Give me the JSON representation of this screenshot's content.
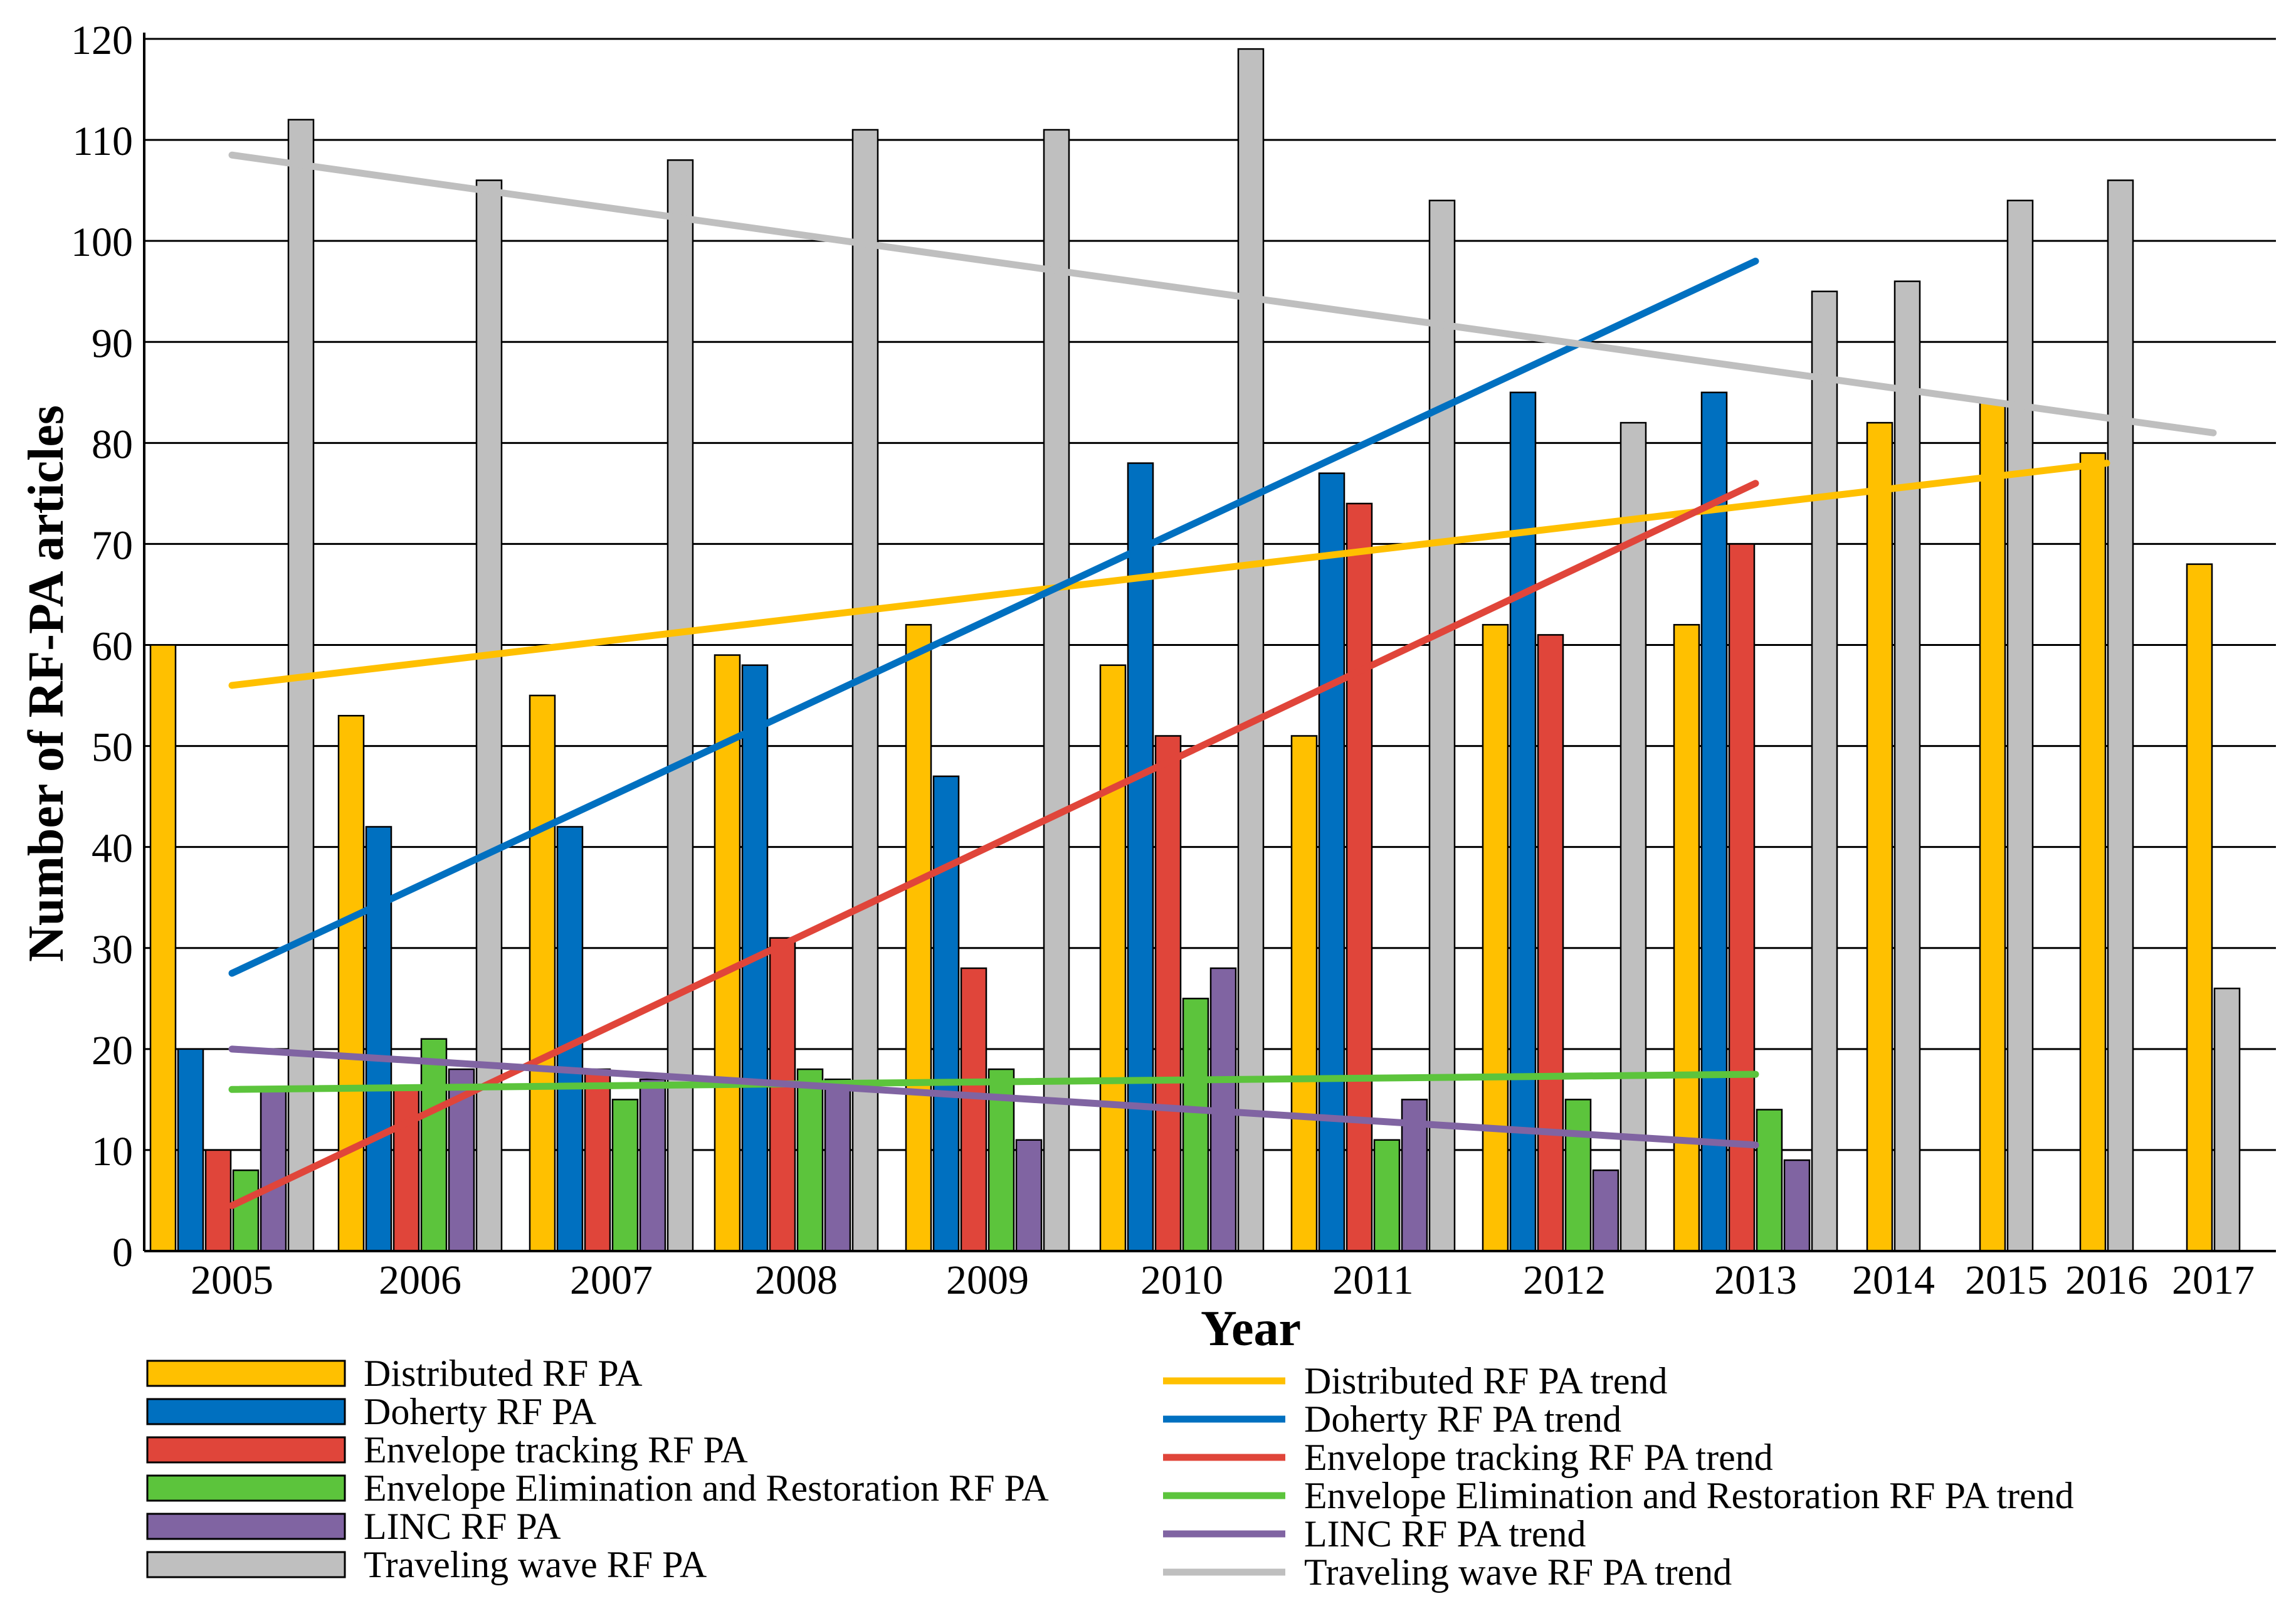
{
  "chart_data": {
    "type": "bar",
    "title": "",
    "xlabel": "Year",
    "ylabel": "Number of RF-PA articles",
    "ylim": [
      0,
      120
    ],
    "yticks": [
      0,
      10,
      20,
      30,
      40,
      50,
      60,
      70,
      80,
      90,
      100,
      110,
      120
    ],
    "grid": true,
    "legend_position": "bottom",
    "categories": [
      "2005",
      "2006",
      "2007",
      "2008",
      "2009",
      "2010",
      "2011",
      "2012",
      "2013",
      "2014",
      "2015",
      "2016",
      "2017"
    ],
    "series": [
      {
        "name": "Distributed RF PA",
        "color": "#FFC000",
        "values": [
          60,
          53,
          55,
          59,
          62,
          58,
          51,
          62,
          62,
          82,
          84,
          79,
          68
        ]
      },
      {
        "name": "Doherty RF PA",
        "color": "#0070C0",
        "values": [
          20,
          42,
          42,
          58,
          47,
          78,
          77,
          85,
          85,
          null,
          null,
          null,
          null
        ]
      },
      {
        "name": "Envelope tracking RF PA",
        "color": "#E0453A",
        "values": [
          10,
          16,
          18,
          31,
          28,
          51,
          74,
          61,
          70,
          null,
          null,
          null,
          null
        ]
      },
      {
        "name": "Envelope Elimination and Restoration RF PA",
        "color": "#5CC43C",
        "values": [
          8,
          21,
          15,
          18,
          18,
          25,
          11,
          15,
          14,
          null,
          null,
          null,
          null
        ]
      },
      {
        "name": "LINC RF PA",
        "color": "#8064A2",
        "values": [
          16,
          18,
          17,
          17,
          11,
          28,
          15,
          8,
          9,
          null,
          null,
          null,
          null
        ]
      },
      {
        "name": "Traveling wave RF PA",
        "color": "#BFBFBF",
        "values": [
          112,
          106,
          108,
          111,
          111,
          119,
          104,
          82,
          95,
          96,
          104,
          106,
          26
        ]
      }
    ],
    "trends": [
      {
        "name": "Distributed RF PA trend",
        "color": "#FFC000",
        "x": [
          "2005",
          "2016"
        ],
        "y": [
          56,
          78
        ]
      },
      {
        "name": "Doherty RF PA trend",
        "color": "#0070C0",
        "x": [
          "2005",
          "2013"
        ],
        "y": [
          27.5,
          98
        ]
      },
      {
        "name": "Envelope tracking RF PA trend",
        "color": "#E0453A",
        "x": [
          "2005",
          "2013"
        ],
        "y": [
          4.5,
          76
        ]
      },
      {
        "name": "Envelope Elimination and Restoration RF PA trend",
        "color": "#5CC43C",
        "x": [
          "2005",
          "2013"
        ],
        "y": [
          16,
          17.5
        ]
      },
      {
        "name": "LINC RF PA trend",
        "color": "#8064A2",
        "x": [
          "2005",
          "2013"
        ],
        "y": [
          20,
          10.5
        ]
      },
      {
        "name": "Traveling wave RF PA trend",
        "color": "#BFBFBF",
        "x": [
          "2005",
          "2017"
        ],
        "y": [
          108.5,
          81
        ]
      }
    ]
  }
}
